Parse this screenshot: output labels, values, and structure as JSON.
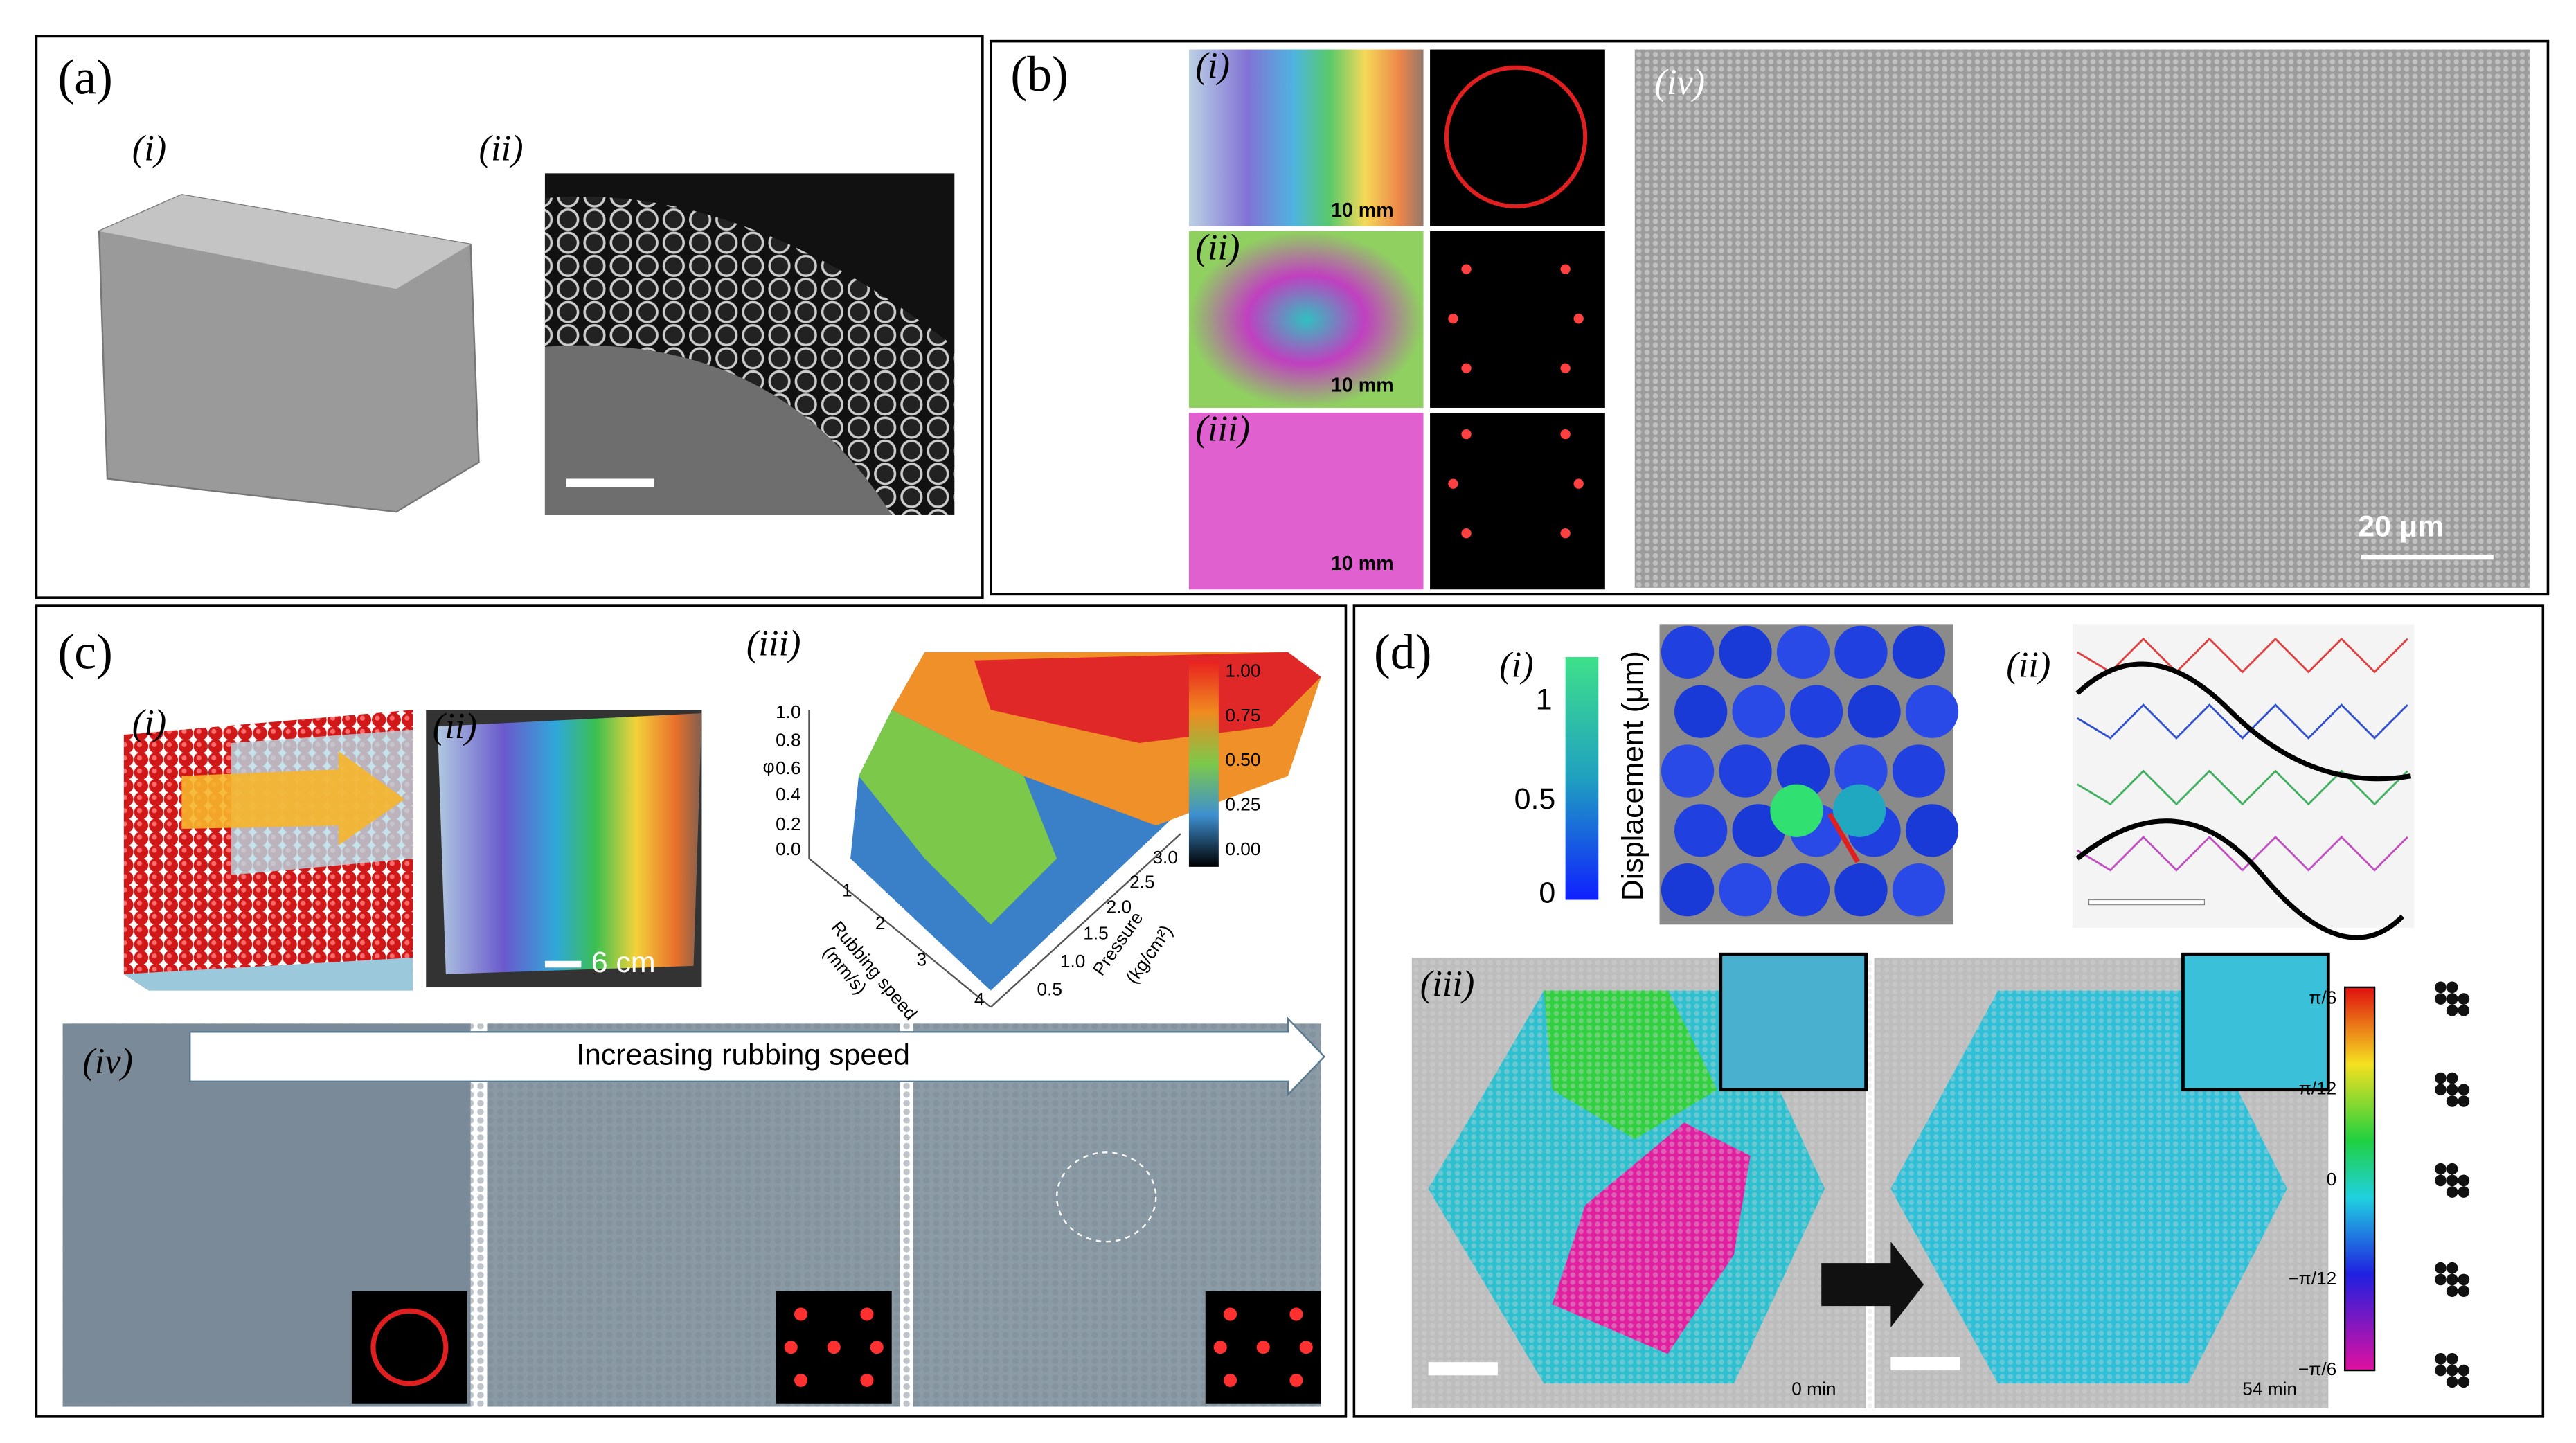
{
  "panels": {
    "a": {
      "label": "(a)",
      "sub": [
        "(i)",
        "(ii)"
      ]
    },
    "b": {
      "label": "(b)",
      "sub": [
        "(i)",
        "(ii)",
        "(iii)",
        "(iv)"
      ],
      "scale_bars": [
        "10 mm",
        "10 mm",
        "10 mm"
      ],
      "scale_bar_large": "20 μm"
    },
    "c": {
      "label": "(c)",
      "sub": [
        "(i)",
        "(ii)",
        "(iii)",
        "(iv)"
      ],
      "scale_bar": "6 cm",
      "plot": {
        "z_label": "φ",
        "z_ticks": [
          "0.0",
          "0.2",
          "0.4",
          "0.6",
          "0.8",
          "1.0"
        ],
        "x_label": "Rubbing speed",
        "x_unit": "(mm/s)",
        "x_ticks": [
          "1",
          "2",
          "3",
          "4"
        ],
        "y_label": "Pressure",
        "y_unit": "(kg/cm²)",
        "y_ticks": [
          "0.5",
          "1.0",
          "1.5",
          "2.0",
          "2.5",
          "3.0"
        ],
        "colorbar_ticks": [
          "1.00",
          "0.75",
          "0.50",
          "0.25",
          "0.00"
        ]
      },
      "arrow_text": "Increasing rubbing speed"
    },
    "d": {
      "label": "(d)",
      "sub": [
        "(i)",
        "(ii)",
        "(iii)"
      ],
      "colorbar_label": "Displacement (μm)",
      "colorbar_ticks": [
        "1",
        "0.5",
        "0"
      ],
      "times": [
        "0 min",
        "54 min"
      ],
      "angle_ticks": [
        "π/6",
        "π/12",
        "0",
        "−π/12",
        "−π/6"
      ]
    }
  }
}
